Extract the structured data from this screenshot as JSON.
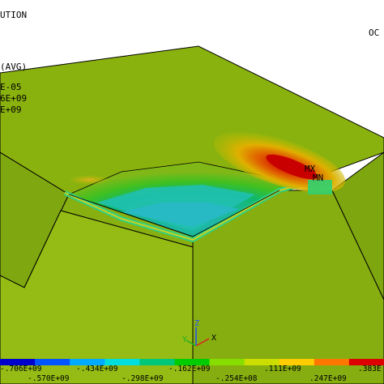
{
  "header": {
    "line1": "UTION",
    "line2": "(AVG)",
    "line3": "E-05",
    "line4": "6E+09",
    "line5": "E+09",
    "date_stub": "OC"
  },
  "markers": {
    "max": "MX",
    "min": "MN"
  },
  "triad": {
    "y": "Y",
    "z": "Z",
    "x": "X"
  },
  "legend": {
    "colors": [
      "#0000cc",
      "#0055ff",
      "#00aaff",
      "#00dddd",
      "#00c878",
      "#00cc00",
      "#88dd00",
      "#ccdd00",
      "#ffcc00",
      "#ff7700",
      "#dd0000"
    ],
    "top_labels": [
      "-.706E+09",
      "-.434E+09",
      "-.162E+09",
      ".111E+09",
      ".383E"
    ],
    "bottom_labels": [
      "-.570E+09",
      "-.298E+09",
      "-.254E+08",
      ".247E+09"
    ]
  }
}
